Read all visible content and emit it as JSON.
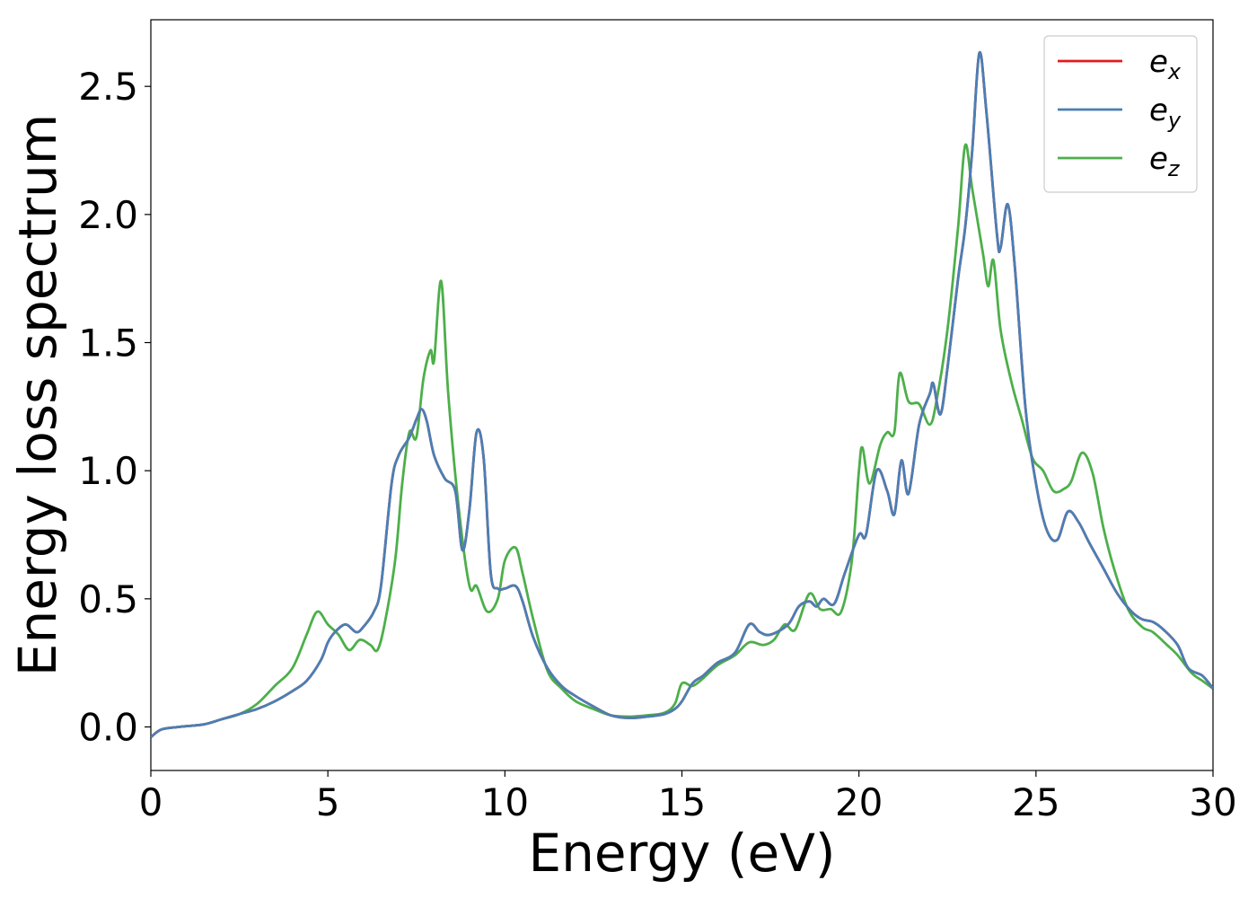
{
  "chart_data": {
    "type": "line",
    "xlabel": "Energy (eV)",
    "ylabel": "Energy loss spectrum",
    "xlim": [
      0,
      30
    ],
    "ylim": [
      -0.17,
      2.76
    ],
    "xticks": [
      0,
      5,
      10,
      15,
      20,
      25,
      30
    ],
    "xtick_labels": [
      "0",
      "5",
      "10",
      "15",
      "20",
      "25",
      "30"
    ],
    "yticks": [
      0.0,
      0.5,
      1.0,
      1.5,
      2.0,
      2.5
    ],
    "ytick_labels": [
      "0.0",
      "0.5",
      "1.0",
      "1.5",
      "2.0",
      "2.5"
    ],
    "grid": false,
    "legend_position": "top-right",
    "series": [
      {
        "name": "e",
        "subscript": "x",
        "color": "#e41a1c",
        "points": [
          [
            0,
            -0.04
          ],
          [
            0.3,
            -0.01
          ],
          [
            0.8,
            0.0
          ],
          [
            1.5,
            0.01
          ],
          [
            2.0,
            0.03
          ],
          [
            2.5,
            0.05
          ],
          [
            3.0,
            0.07
          ],
          [
            3.5,
            0.1
          ],
          [
            4.0,
            0.14
          ],
          [
            4.4,
            0.18
          ],
          [
            4.8,
            0.26
          ],
          [
            5.0,
            0.33
          ],
          [
            5.2,
            0.37
          ],
          [
            5.5,
            0.4
          ],
          [
            5.8,
            0.37
          ],
          [
            6.0,
            0.39
          ],
          [
            6.3,
            0.45
          ],
          [
            6.5,
            0.55
          ],
          [
            6.8,
            0.95
          ],
          [
            7.0,
            1.06
          ],
          [
            7.3,
            1.13
          ],
          [
            7.5,
            1.2
          ],
          [
            7.65,
            1.24
          ],
          [
            7.8,
            1.19
          ],
          [
            8.0,
            1.06
          ],
          [
            8.3,
            0.97
          ],
          [
            8.6,
            0.92
          ],
          [
            8.8,
            0.69
          ],
          [
            9.0,
            0.85
          ],
          [
            9.2,
            1.15
          ],
          [
            9.4,
            1.05
          ],
          [
            9.6,
            0.6
          ],
          [
            9.8,
            0.54
          ],
          [
            10.0,
            0.54
          ],
          [
            10.3,
            0.55
          ],
          [
            10.5,
            0.49
          ],
          [
            10.8,
            0.35
          ],
          [
            11.2,
            0.23
          ],
          [
            11.6,
            0.16
          ],
          [
            12.0,
            0.12
          ],
          [
            12.5,
            0.08
          ],
          [
            13.0,
            0.045
          ],
          [
            13.5,
            0.035
          ],
          [
            14.0,
            0.04
          ],
          [
            14.5,
            0.05
          ],
          [
            14.8,
            0.07
          ],
          [
            15.0,
            0.1
          ],
          [
            15.3,
            0.17
          ],
          [
            15.6,
            0.2
          ],
          [
            16.0,
            0.25
          ],
          [
            16.5,
            0.29
          ],
          [
            16.9,
            0.4
          ],
          [
            17.2,
            0.37
          ],
          [
            17.5,
            0.36
          ],
          [
            18.0,
            0.4
          ],
          [
            18.3,
            0.47
          ],
          [
            18.6,
            0.49
          ],
          [
            18.8,
            0.47
          ],
          [
            19.0,
            0.5
          ],
          [
            19.3,
            0.48
          ],
          [
            19.6,
            0.6
          ],
          [
            20.0,
            0.75
          ],
          [
            20.2,
            0.75
          ],
          [
            20.5,
            1.0
          ],
          [
            20.8,
            0.92
          ],
          [
            21.0,
            0.83
          ],
          [
            21.2,
            1.04
          ],
          [
            21.4,
            0.91
          ],
          [
            21.7,
            1.18
          ],
          [
            22.0,
            1.3
          ],
          [
            22.1,
            1.34
          ],
          [
            22.3,
            1.22
          ],
          [
            22.5,
            1.4
          ],
          [
            22.8,
            1.75
          ],
          [
            23.0,
            1.95
          ],
          [
            23.2,
            2.25
          ],
          [
            23.4,
            2.63
          ],
          [
            23.6,
            2.4
          ],
          [
            23.9,
            1.92
          ],
          [
            24.0,
            1.87
          ],
          [
            24.2,
            2.04
          ],
          [
            24.4,
            1.8
          ],
          [
            24.7,
            1.25
          ],
          [
            25.0,
            0.95
          ],
          [
            25.3,
            0.77
          ],
          [
            25.6,
            0.73
          ],
          [
            25.9,
            0.84
          ],
          [
            26.2,
            0.8
          ],
          [
            26.5,
            0.72
          ],
          [
            26.9,
            0.62
          ],
          [
            27.3,
            0.52
          ],
          [
            27.7,
            0.45
          ],
          [
            28.0,
            0.42
          ],
          [
            28.3,
            0.41
          ],
          [
            28.6,
            0.38
          ],
          [
            29.0,
            0.32
          ],
          [
            29.3,
            0.23
          ],
          [
            29.7,
            0.2
          ],
          [
            30.0,
            0.15
          ]
        ]
      },
      {
        "name": "e",
        "subscript": "y",
        "color": "#4a7fb5",
        "points": [
          [
            0,
            -0.04
          ],
          [
            0.3,
            -0.01
          ],
          [
            0.8,
            0.0
          ],
          [
            1.5,
            0.01
          ],
          [
            2.0,
            0.03
          ],
          [
            2.5,
            0.05
          ],
          [
            3.0,
            0.07
          ],
          [
            3.5,
            0.1
          ],
          [
            4.0,
            0.14
          ],
          [
            4.4,
            0.18
          ],
          [
            4.8,
            0.26
          ],
          [
            5.0,
            0.33
          ],
          [
            5.2,
            0.37
          ],
          [
            5.5,
            0.4
          ],
          [
            5.8,
            0.37
          ],
          [
            6.0,
            0.39
          ],
          [
            6.3,
            0.45
          ],
          [
            6.5,
            0.55
          ],
          [
            6.8,
            0.95
          ],
          [
            7.0,
            1.06
          ],
          [
            7.3,
            1.13
          ],
          [
            7.5,
            1.2
          ],
          [
            7.65,
            1.24
          ],
          [
            7.8,
            1.19
          ],
          [
            8.0,
            1.06
          ],
          [
            8.3,
            0.97
          ],
          [
            8.6,
            0.92
          ],
          [
            8.8,
            0.69
          ],
          [
            9.0,
            0.85
          ],
          [
            9.2,
            1.15
          ],
          [
            9.4,
            1.05
          ],
          [
            9.6,
            0.6
          ],
          [
            9.8,
            0.54
          ],
          [
            10.0,
            0.54
          ],
          [
            10.3,
            0.55
          ],
          [
            10.5,
            0.49
          ],
          [
            10.8,
            0.35
          ],
          [
            11.2,
            0.23
          ],
          [
            11.6,
            0.16
          ],
          [
            12.0,
            0.12
          ],
          [
            12.5,
            0.08
          ],
          [
            13.0,
            0.045
          ],
          [
            13.5,
            0.035
          ],
          [
            14.0,
            0.04
          ],
          [
            14.5,
            0.05
          ],
          [
            14.8,
            0.07
          ],
          [
            15.0,
            0.1
          ],
          [
            15.3,
            0.17
          ],
          [
            15.6,
            0.2
          ],
          [
            16.0,
            0.25
          ],
          [
            16.5,
            0.29
          ],
          [
            16.9,
            0.4
          ],
          [
            17.2,
            0.37
          ],
          [
            17.5,
            0.36
          ],
          [
            18.0,
            0.4
          ],
          [
            18.3,
            0.47
          ],
          [
            18.6,
            0.49
          ],
          [
            18.8,
            0.47
          ],
          [
            19.0,
            0.5
          ],
          [
            19.3,
            0.48
          ],
          [
            19.6,
            0.6
          ],
          [
            20.0,
            0.75
          ],
          [
            20.2,
            0.75
          ],
          [
            20.5,
            1.0
          ],
          [
            20.8,
            0.92
          ],
          [
            21.0,
            0.83
          ],
          [
            21.2,
            1.04
          ],
          [
            21.4,
            0.91
          ],
          [
            21.7,
            1.18
          ],
          [
            22.0,
            1.3
          ],
          [
            22.1,
            1.34
          ],
          [
            22.3,
            1.22
          ],
          [
            22.5,
            1.4
          ],
          [
            22.8,
            1.75
          ],
          [
            23.0,
            1.95
          ],
          [
            23.2,
            2.25
          ],
          [
            23.4,
            2.63
          ],
          [
            23.6,
            2.4
          ],
          [
            23.9,
            1.92
          ],
          [
            24.0,
            1.87
          ],
          [
            24.2,
            2.04
          ],
          [
            24.4,
            1.8
          ],
          [
            24.7,
            1.25
          ],
          [
            25.0,
            0.95
          ],
          [
            25.3,
            0.77
          ],
          [
            25.6,
            0.73
          ],
          [
            25.9,
            0.84
          ],
          [
            26.2,
            0.8
          ],
          [
            26.5,
            0.72
          ],
          [
            26.9,
            0.62
          ],
          [
            27.3,
            0.52
          ],
          [
            27.7,
            0.45
          ],
          [
            28.0,
            0.42
          ],
          [
            28.3,
            0.41
          ],
          [
            28.6,
            0.38
          ],
          [
            29.0,
            0.32
          ],
          [
            29.3,
            0.23
          ],
          [
            29.7,
            0.2
          ],
          [
            30.0,
            0.15
          ]
        ]
      },
      {
        "name": "e",
        "subscript": "z",
        "color": "#4daf4a",
        "points": [
          [
            0,
            -0.04
          ],
          [
            0.3,
            -0.01
          ],
          [
            0.8,
            0.0
          ],
          [
            1.5,
            0.01
          ],
          [
            2.0,
            0.03
          ],
          [
            2.5,
            0.05
          ],
          [
            3.0,
            0.09
          ],
          [
            3.5,
            0.16
          ],
          [
            4.0,
            0.23
          ],
          [
            4.4,
            0.36
          ],
          [
            4.7,
            0.45
          ],
          [
            5.0,
            0.4
          ],
          [
            5.3,
            0.36
          ],
          [
            5.6,
            0.3
          ],
          [
            5.9,
            0.34
          ],
          [
            6.2,
            0.32
          ],
          [
            6.4,
            0.3
          ],
          [
            6.6,
            0.4
          ],
          [
            6.9,
            0.65
          ],
          [
            7.1,
            0.95
          ],
          [
            7.3,
            1.15
          ],
          [
            7.5,
            1.13
          ],
          [
            7.7,
            1.36
          ],
          [
            7.9,
            1.47
          ],
          [
            8.0,
            1.43
          ],
          [
            8.2,
            1.74
          ],
          [
            8.4,
            1.3
          ],
          [
            8.7,
            0.85
          ],
          [
            9.0,
            0.55
          ],
          [
            9.2,
            0.55
          ],
          [
            9.5,
            0.45
          ],
          [
            9.8,
            0.5
          ],
          [
            10.0,
            0.65
          ],
          [
            10.3,
            0.7
          ],
          [
            10.5,
            0.6
          ],
          [
            10.8,
            0.42
          ],
          [
            11.2,
            0.22
          ],
          [
            11.6,
            0.15
          ],
          [
            12.0,
            0.1
          ],
          [
            12.5,
            0.07
          ],
          [
            13.0,
            0.045
          ],
          [
            13.5,
            0.04
          ],
          [
            14.0,
            0.045
          ],
          [
            14.5,
            0.055
          ],
          [
            14.8,
            0.09
          ],
          [
            15.0,
            0.17
          ],
          [
            15.3,
            0.16
          ],
          [
            15.6,
            0.19
          ],
          [
            16.0,
            0.24
          ],
          [
            16.5,
            0.28
          ],
          [
            16.9,
            0.33
          ],
          [
            17.3,
            0.32
          ],
          [
            17.6,
            0.34
          ],
          [
            17.9,
            0.4
          ],
          [
            18.2,
            0.38
          ],
          [
            18.6,
            0.52
          ],
          [
            18.9,
            0.46
          ],
          [
            19.2,
            0.46
          ],
          [
            19.5,
            0.45
          ],
          [
            19.8,
            0.65
          ],
          [
            20.0,
            1.0
          ],
          [
            20.1,
            1.09
          ],
          [
            20.3,
            0.95
          ],
          [
            20.6,
            1.1
          ],
          [
            20.8,
            1.15
          ],
          [
            21.0,
            1.15
          ],
          [
            21.15,
            1.38
          ],
          [
            21.4,
            1.27
          ],
          [
            21.7,
            1.26
          ],
          [
            22.0,
            1.18
          ],
          [
            22.2,
            1.28
          ],
          [
            22.5,
            1.55
          ],
          [
            22.8,
            1.95
          ],
          [
            23.0,
            2.27
          ],
          [
            23.2,
            2.1
          ],
          [
            23.5,
            1.85
          ],
          [
            23.65,
            1.72
          ],
          [
            23.8,
            1.82
          ],
          [
            24.0,
            1.55
          ],
          [
            24.3,
            1.35
          ],
          [
            24.6,
            1.2
          ],
          [
            24.9,
            1.05
          ],
          [
            25.2,
            1.0
          ],
          [
            25.5,
            0.92
          ],
          [
            25.8,
            0.93
          ],
          [
            26.0,
            0.96
          ],
          [
            26.3,
            1.07
          ],
          [
            26.6,
            0.99
          ],
          [
            26.9,
            0.78
          ],
          [
            27.2,
            0.62
          ],
          [
            27.6,
            0.46
          ],
          [
            28.0,
            0.39
          ],
          [
            28.3,
            0.37
          ],
          [
            28.7,
            0.32
          ],
          [
            29.0,
            0.28
          ],
          [
            29.4,
            0.21
          ],
          [
            29.7,
            0.18
          ],
          [
            30.0,
            0.15
          ]
        ]
      }
    ]
  }
}
